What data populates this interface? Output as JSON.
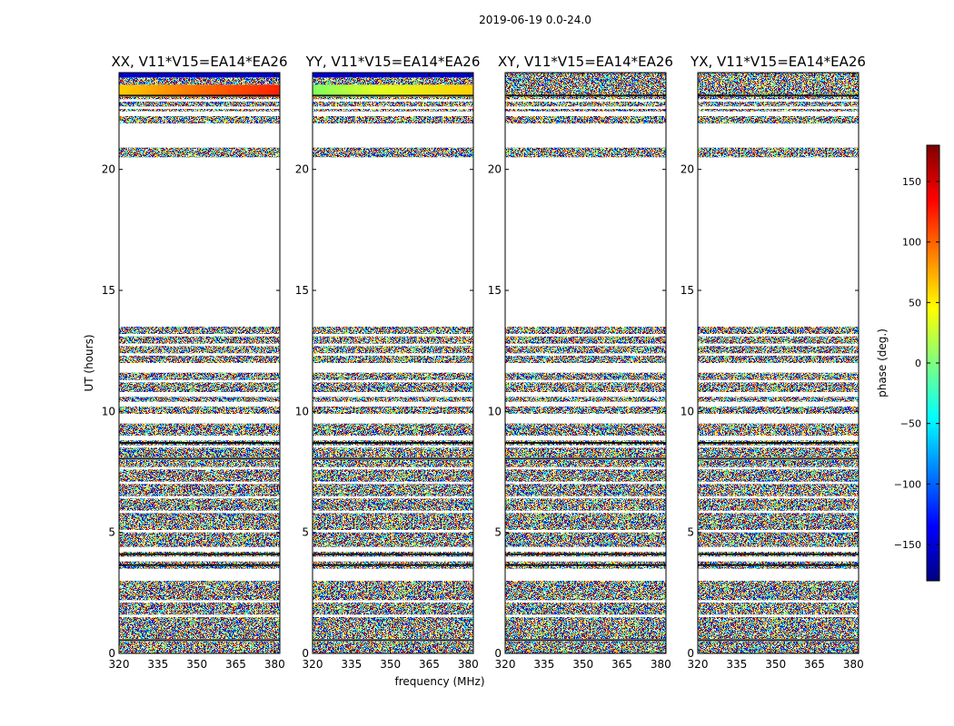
{
  "suptitle": "2019-06-19 0.0-24.0",
  "chart_data": {
    "type": "heatmap",
    "panels": [
      {
        "title": "XX, V11*V15=EA14*EA26",
        "pol": "XX"
      },
      {
        "title": "YY, V11*V15=EA14*EA26",
        "pol": "YY"
      },
      {
        "title": "XY, V11*V15=EA14*EA26",
        "pol": "XY"
      },
      {
        "title": "YX, V11*V15=EA14*EA26",
        "pol": "YX"
      }
    ],
    "xlabel": "frequency (MHz)",
    "ylabel": "UT (hours)",
    "xlim": [
      320,
      382
    ],
    "ylim": [
      0,
      24
    ],
    "xticks": [
      "320",
      "335",
      "350",
      "365",
      "380"
    ],
    "xtick_values": [
      320,
      335,
      350,
      365,
      380
    ],
    "yticks": [
      "0",
      "5",
      "10",
      "15",
      "20"
    ],
    "ytick_values": [
      0,
      5,
      10,
      15,
      20
    ],
    "colorbar": {
      "label": "phase (deg.)",
      "range": [
        -180,
        180
      ],
      "ticks": [
        "150",
        "100",
        "50",
        "0",
        "−50",
        "−100",
        "−150"
      ],
      "tick_values": [
        150,
        100,
        50,
        0,
        -50,
        -100,
        -150
      ],
      "colormap": [
        "#00007f",
        "#0000ff",
        "#007fff",
        "#00ffff",
        "#7fff7f",
        "#ffff00",
        "#ff7f00",
        "#ff0000",
        "#7f0000"
      ]
    },
    "data_blocks_ut": [
      [
        0.0,
        0.5
      ],
      [
        0.6,
        1.5
      ],
      [
        1.6,
        2.1
      ],
      [
        2.2,
        3.0
      ],
      [
        3.5,
        3.8
      ],
      [
        4.0,
        4.2
      ],
      [
        4.4,
        5.0
      ],
      [
        5.1,
        5.8
      ],
      [
        5.9,
        6.4
      ],
      [
        6.5,
        7.0
      ],
      [
        7.1,
        7.6
      ],
      [
        7.7,
        8.0
      ],
      [
        8.1,
        8.5
      ],
      [
        8.6,
        8.8
      ],
      [
        9.0,
        9.5
      ],
      [
        9.9,
        10.2
      ],
      [
        10.4,
        10.6
      ],
      [
        10.8,
        11.2
      ],
      [
        11.3,
        11.6
      ],
      [
        12.0,
        12.3
      ],
      [
        12.4,
        12.7
      ],
      [
        12.8,
        13.1
      ],
      [
        13.2,
        13.5
      ],
      [
        20.5,
        20.9
      ],
      [
        21.9,
        22.2
      ],
      [
        22.4,
        22.5
      ],
      [
        22.6,
        22.8
      ],
      [
        22.9,
        23.0
      ],
      [
        23.0,
        23.5
      ],
      [
        23.5,
        23.8
      ],
      [
        23.8,
        24.0
      ]
    ]
  }
}
